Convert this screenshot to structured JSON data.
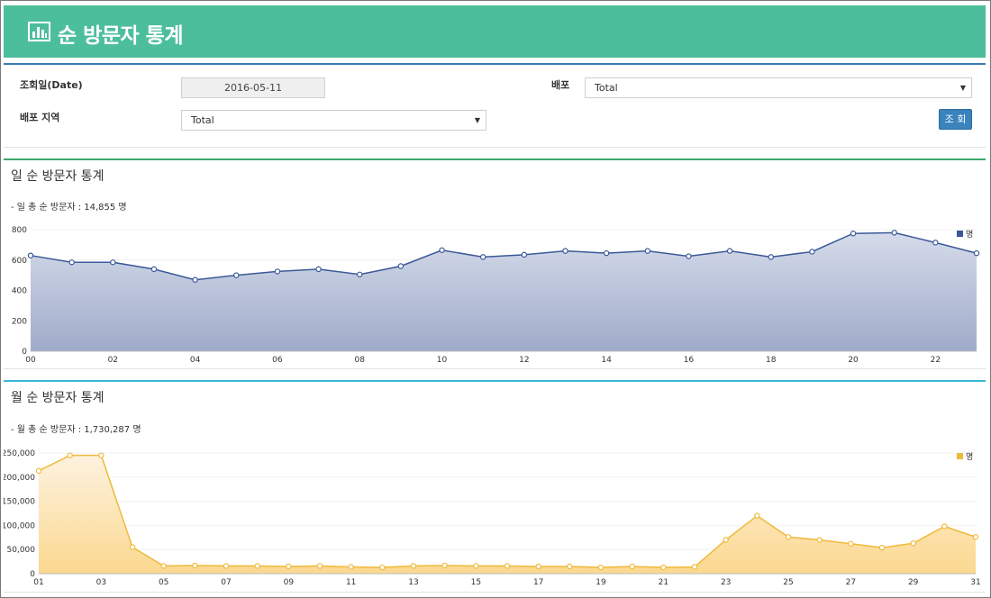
{
  "header": {
    "title": "순 방문자 통계",
    "icon": "bar-chart-icon"
  },
  "filters": {
    "date_label": "조회일(Date)",
    "date_value": "2016-05-11",
    "distribution_label": "배포",
    "distribution_value": "Total",
    "region_label": "배포 지역",
    "region_value": "Total",
    "search_button": "조 회"
  },
  "colors": {
    "header": "#4dbe9b",
    "daily_line": "#3b5998",
    "monthly_line": "#f0b93a",
    "button": "#3a83bd"
  },
  "daily": {
    "title": "일 순 방문자 통계",
    "summary": "- 일 총 순 방문자 : 14,855 명"
  },
  "monthly": {
    "title": "월 순 방문자 통계",
    "summary": "- 월 총 순 방문자 : 1,730,287 명"
  },
  "chart_data": [
    {
      "type": "area",
      "title": "",
      "legend": [
        "명"
      ],
      "legend_position": "top-right",
      "x": [
        "00",
        "01",
        "02",
        "03",
        "04",
        "05",
        "06",
        "07",
        "08",
        "09",
        "10",
        "11",
        "12",
        "13",
        "14",
        "15",
        "16",
        "17",
        "18",
        "19",
        "20",
        "21",
        "22",
        "23"
      ],
      "xtick_labels": [
        "00",
        "02",
        "04",
        "06",
        "08",
        "10",
        "12",
        "14",
        "16",
        "18",
        "20",
        "22"
      ],
      "ylim": [
        0,
        800
      ],
      "yticks": [
        "0",
        "200",
        "400",
        "600",
        "800"
      ],
      "series": [
        {
          "name": "명",
          "values": [
            630,
            585,
            585,
            540,
            470,
            500,
            525,
            540,
            505,
            560,
            665,
            620,
            635,
            660,
            645,
            660,
            625,
            660,
            620,
            655,
            775,
            780,
            715,
            645
          ]
        }
      ]
    },
    {
      "type": "area",
      "title": "",
      "legend": [
        "명"
      ],
      "legend_position": "top-right",
      "x": [
        "01",
        "02",
        "03",
        "04",
        "05",
        "06",
        "07",
        "08",
        "09",
        "10",
        "11",
        "12",
        "13",
        "14",
        "15",
        "16",
        "17",
        "18",
        "19",
        "20",
        "21",
        "22",
        "23",
        "24",
        "25",
        "26",
        "27",
        "28",
        "29",
        "30",
        "31"
      ],
      "xtick_labels": [
        "01",
        "03",
        "05",
        "07",
        "09",
        "11",
        "13",
        "15",
        "17",
        "19",
        "21",
        "23",
        "25",
        "27",
        "29",
        "31"
      ],
      "ylim": [
        0,
        250000
      ],
      "yticks": [
        "0",
        "50,000",
        "100,000",
        "150,000",
        "200,000",
        "250,000"
      ],
      "series": [
        {
          "name": "명",
          "values": [
            213000,
            245000,
            245000,
            55000,
            16000,
            17000,
            16000,
            16000,
            15000,
            16000,
            14000,
            13000,
            16000,
            17000,
            16000,
            16000,
            15000,
            15000,
            13000,
            15000,
            13000,
            14000,
            70000,
            120000,
            76000,
            70000,
            62000,
            54000,
            63000,
            98000,
            76000
          ]
        }
      ]
    }
  ]
}
